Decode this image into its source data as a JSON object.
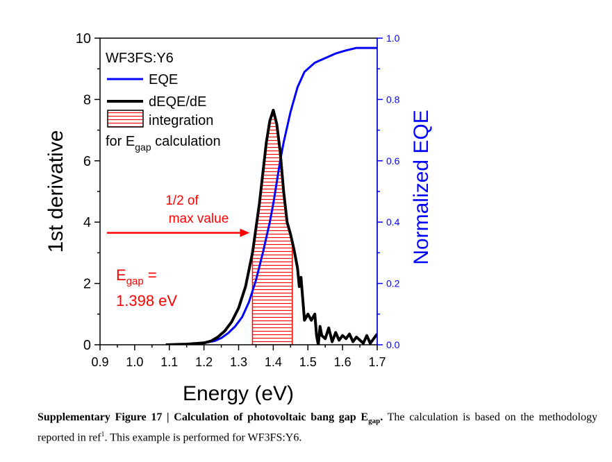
{
  "chart_data": {
    "type": "line",
    "xlabel": "Energy (eV)",
    "ylabel_left": "1st derivative",
    "ylabel_right": "Normalized EQE",
    "xlim": [
      0.9,
      1.7
    ],
    "ylim_left": [
      0,
      10
    ],
    "ylim_right": [
      0.0,
      1.0
    ],
    "x_ticks": [
      "0.9",
      "1.0",
      "1.1",
      "1.2",
      "1.3",
      "1.4",
      "1.5",
      "1.6",
      "1.7"
    ],
    "y_left_ticks": [
      "0",
      "2",
      "4",
      "6",
      "8",
      "10"
    ],
    "y_right_ticks": [
      "0.0",
      "0.2",
      "0.4",
      "0.6",
      "0.8",
      "1.0"
    ],
    "grid": false,
    "legend_position": "top-left",
    "legend_title": "WF3FS:Y6",
    "series": [
      {
        "name": "EQE",
        "axis": "right",
        "color": "#0000ff",
        "x": [
          1.09,
          1.15,
          1.2,
          1.23,
          1.25,
          1.27,
          1.29,
          1.31,
          1.33,
          1.35,
          1.37,
          1.39,
          1.4,
          1.41,
          1.42,
          1.43,
          1.45,
          1.47,
          1.49,
          1.52,
          1.55,
          1.58,
          1.61,
          1.64,
          1.67,
          1.7
        ],
        "values": [
          0.0,
          0.002,
          0.006,
          0.012,
          0.022,
          0.038,
          0.06,
          0.09,
          0.14,
          0.21,
          0.3,
          0.4,
          0.46,
          0.53,
          0.6,
          0.66,
          0.76,
          0.84,
          0.89,
          0.92,
          0.935,
          0.95,
          0.96,
          0.968,
          0.968,
          0.968
        ]
      },
      {
        "name": "dEQE/dE",
        "axis": "left",
        "color": "#000000",
        "x": [
          1.09,
          1.15,
          1.2,
          1.22,
          1.24,
          1.26,
          1.28,
          1.3,
          1.32,
          1.34,
          1.36,
          1.38,
          1.39,
          1.4,
          1.41,
          1.42,
          1.43,
          1.44,
          1.45,
          1.46,
          1.47,
          1.475,
          1.48,
          1.485,
          1.49,
          1.5,
          1.51,
          1.52,
          1.525,
          1.53,
          1.535,
          1.54,
          1.55,
          1.56,
          1.57,
          1.58,
          1.59,
          1.6,
          1.61,
          1.62,
          1.63,
          1.64,
          1.65,
          1.66,
          1.67,
          1.68,
          1.69,
          1.7
        ],
        "values": [
          0.0,
          0.02,
          0.06,
          0.12,
          0.25,
          0.45,
          0.75,
          1.2,
          1.9,
          3.0,
          4.6,
          6.6,
          7.3,
          7.65,
          7.2,
          6.3,
          5.0,
          4.0,
          3.6,
          3.1,
          2.5,
          1.9,
          2.2,
          1.5,
          0.8,
          1.0,
          0.8,
          1.0,
          0.3,
          0.0,
          0.6,
          0.3,
          0.2,
          0.55,
          0.1,
          0.4,
          0.15,
          0.3,
          0.2,
          0.35,
          0.1,
          0.25,
          0.15,
          0.05,
          0.3,
          0.05,
          0.2,
          0.35
        ]
      }
    ],
    "integration_region": {
      "name": "integration",
      "legend_suffix": "for E",
      "legend_subscript": "gap",
      "legend_tail": " calculation",
      "x_start": 1.34,
      "x_end": 1.455,
      "color": "#ff0000"
    },
    "annotations": {
      "half_max_line1": "1/2 of",
      "half_max_line2": "max value",
      "half_max_y": 3.65,
      "egap_prefix": "E",
      "egap_subscript": "gap",
      "egap_suffix": " =",
      "egap_value": "1.398 eV",
      "annotation_color": "#ff0000"
    }
  },
  "caption": {
    "bold_prefix": "Supplementary Figure 17 | Calculation of photovoltaic bang gap E",
    "bold_subscript": "gap",
    "bold_end": ".",
    "text_1": " The calculation is based on the methodology reported in ref",
    "superscript": "1",
    "text_2": ". This example is performed for WF3FS:Y6."
  }
}
